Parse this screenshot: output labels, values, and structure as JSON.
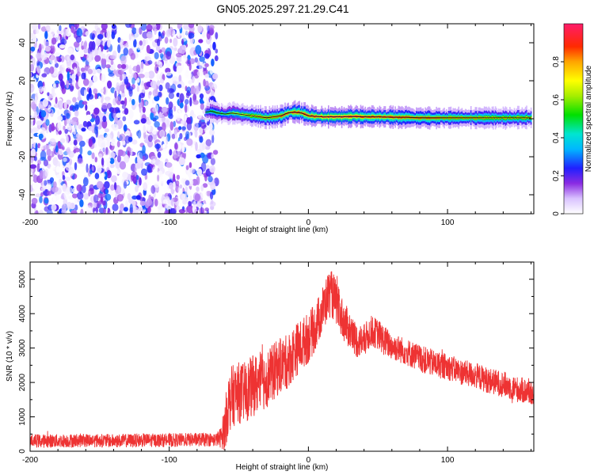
{
  "title": "GN05.2025.297.21.29.C41",
  "chart_data": [
    {
      "type": "heatmap",
      "panel": "spectrogram",
      "xlabel": "Height of straight line (km)",
      "ylabel": "Frequency (Hz)",
      "xlim": [
        -200,
        162
      ],
      "ylim": [
        -50,
        50
      ],
      "xticks": [
        -200,
        -100,
        0,
        100
      ],
      "yticks": [
        -40,
        -20,
        0,
        20,
        40
      ],
      "noise_region": {
        "x": [
          -200,
          -66
        ],
        "y": [
          -50,
          50
        ],
        "amplitude_range": [
          0.0,
          0.3
        ]
      },
      "signal_band": {
        "x": [
          -74,
          -70,
          -65,
          -60,
          -55,
          -50,
          -45,
          -40,
          -35,
          -30,
          -25,
          -20,
          -15,
          -10,
          -5,
          0,
          10,
          20,
          30,
          40,
          50,
          60,
          70,
          80,
          90,
          100,
          110,
          120,
          130,
          140,
          150,
          160
        ],
        "freq": [
          3.5,
          4.0,
          3.0,
          2.5,
          3.0,
          2.5,
          2.0,
          1.5,
          1.0,
          0.5,
          1.0,
          1.5,
          3.0,
          3.5,
          3.0,
          1.5,
          1.0,
          1.0,
          1.2,
          1.0,
          1.0,
          0.8,
          0.8,
          0.5,
          0.5,
          0.5,
          0.5,
          0.5,
          0.5,
          0.5,
          0.5,
          0.5
        ],
        "amplitude": [
          0.4,
          0.45,
          0.5,
          0.5,
          0.55,
          0.6,
          0.65,
          0.7,
          0.75,
          0.75,
          0.75,
          0.8,
          0.85,
          0.85,
          0.85,
          0.85,
          0.9,
          0.9,
          0.9,
          0.85,
          0.85,
          0.85,
          0.8,
          0.8,
          0.8,
          0.75,
          0.75,
          0.75,
          0.7,
          0.7,
          0.7,
          0.7
        ]
      },
      "colorbar": {
        "label": "Normalized spectral amplitude",
        "range": [
          0,
          1
        ],
        "ticks": [
          0.0,
          0.2,
          0.4,
          0.6,
          0.8
        ]
      }
    },
    {
      "type": "line",
      "panel": "snr",
      "xlabel": "Height of straight line (km)",
      "ylabel": "SNR (10 * v/v)",
      "xlim": [
        -200,
        162
      ],
      "ylim": [
        0,
        5500
      ],
      "xticks": [
        -200,
        -100,
        0,
        100
      ],
      "yticks": [
        0,
        1000,
        2000,
        3000,
        4000,
        5000
      ],
      "color": "#ee3333",
      "series": [
        {
          "name": "SNR",
          "envelope": {
            "x": [
              -200,
              -180,
              -160,
              -140,
              -120,
              -100,
              -80,
              -66,
              -63,
              -60,
              -58,
              -55,
              -50,
              -45,
              -40,
              -35,
              -30,
              -25,
              -20,
              -15,
              -10,
              -5,
              0,
              5,
              10,
              13,
              15,
              18,
              20,
              25,
              30,
              35,
              40,
              45,
              50,
              55,
              60,
              70,
              80,
              90,
              100,
              110,
              120,
              130,
              140,
              150,
              162
            ],
            "mean": [
              300,
              300,
              320,
              300,
              320,
              320,
              340,
              340,
              400,
              700,
              1300,
              1600,
              1700,
              1700,
              1900,
              2000,
              2100,
              2300,
              2500,
              2600,
              2900,
              3100,
              3300,
              3600,
              4100,
              4400,
              4600,
              4500,
              4300,
              3800,
              3500,
              3200,
              3200,
              3500,
              3400,
              3200,
              3050,
              2900,
              2700,
              2550,
              2450,
              2300,
              2200,
              2050,
              1950,
              1800,
              1700
            ],
            "spread": [
              200,
              200,
              200,
              200,
              200,
              200,
              200,
              200,
              300,
              700,
              900,
              900,
              900,
              900,
              900,
              900,
              850,
              850,
              800,
              800,
              800,
              750,
              750,
              700,
              700,
              700,
              700,
              700,
              650,
              600,
              550,
              500,
              500,
              450,
              450,
              450,
              400,
              400,
              400,
              400,
              380,
              380,
              380,
              380,
              380,
              380,
              380
            ]
          }
        }
      ]
    }
  ]
}
